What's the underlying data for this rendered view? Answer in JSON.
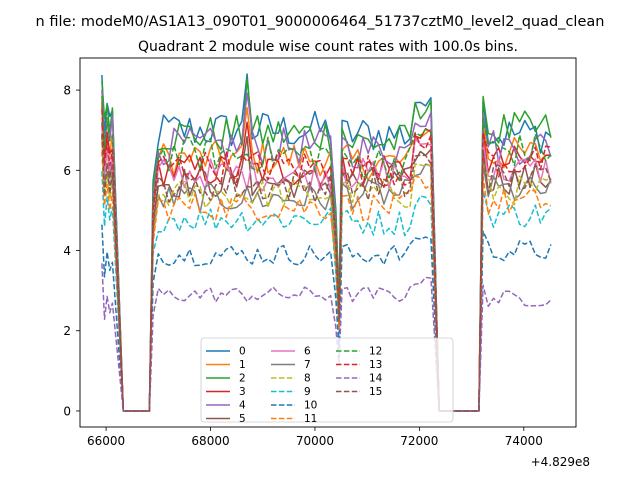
{
  "figure": {
    "suptitle": "n file: modeM0/AS1A13_090T01_9000006464_51737cztM0_level2_quad_clean",
    "title": "Quadrant 2 module wise count rates with 100.0s bins.",
    "offset_label": "+4.829e8"
  },
  "chart_data": {
    "type": "line",
    "title": "Quadrant 2 module wise count rates with 100.0s bins.",
    "xlabel": "",
    "ylabel": "",
    "x_offset": 482900000,
    "xlim": [
      65500,
      75000
    ],
    "ylim": [
      -0.4,
      8.8
    ],
    "xticks": [
      66000,
      68000,
      70000,
      72000,
      74000
    ],
    "yticks": [
      0,
      2,
      4,
      6,
      8
    ],
    "grid": false,
    "legend_position": "lower-center",
    "legend_columns": 4,
    "segments": [
      {
        "start": 65920,
        "end": 66120
      },
      {
        "start": 66900,
        "end": 70420
      },
      {
        "start": 70520,
        "end": 72240
      },
      {
        "start": 73220,
        "end": 74560
      }
    ],
    "gaps": [
      {
        "start": 66330,
        "end": 66830,
        "value": 0
      },
      {
        "start": 72380,
        "end": 73140,
        "value": 0
      }
    ],
    "series": [
      {
        "name": "0",
        "color": "#1f77b4",
        "dash": "solid",
        "levels": [
          8.3,
          7.0,
          6.9,
          6.9
        ]
      },
      {
        "name": "1",
        "color": "#ff7f0e",
        "dash": "solid",
        "levels": [
          7.6,
          6.3,
          6.2,
          6.4
        ]
      },
      {
        "name": "2",
        "color": "#2ca02c",
        "dash": "solid",
        "levels": [
          8.4,
          6.9,
          6.7,
          7.0
        ]
      },
      {
        "name": "3",
        "color": "#d62728",
        "dash": "solid",
        "levels": [
          7.6,
          6.0,
          6.1,
          6.2
        ]
      },
      {
        "name": "4",
        "color": "#9467bd",
        "dash": "solid",
        "levels": [
          8.1,
          6.6,
          6.5,
          6.6
        ]
      },
      {
        "name": "5",
        "color": "#8c564b",
        "dash": "solid",
        "levels": [
          7.2,
          5.7,
          5.7,
          5.8
        ]
      },
      {
        "name": "6",
        "color": "#e377c2",
        "dash": "solid",
        "levels": [
          7.2,
          5.9,
          5.9,
          6.0
        ]
      },
      {
        "name": "7",
        "color": "#7f7f7f",
        "dash": "solid",
        "levels": [
          6.8,
          5.3,
          5.4,
          5.5
        ]
      },
      {
        "name": "8",
        "color": "#bcbd22",
        "dash": "dashed",
        "levels": [
          6.6,
          5.4,
          5.4,
          5.5
        ]
      },
      {
        "name": "9",
        "color": "#17becf",
        "dash": "dashed",
        "levels": [
          5.9,
          4.8,
          4.7,
          4.9
        ]
      },
      {
        "name": "10",
        "color": "#1f77b4",
        "dash": "dashed",
        "levels": [
          4.6,
          3.9,
          3.9,
          4.0
        ]
      },
      {
        "name": "11",
        "color": "#ff7f0e",
        "dash": "dashed",
        "levels": [
          6.3,
          5.1,
          5.1,
          5.2
        ]
      },
      {
        "name": "12",
        "color": "#2ca02c",
        "dash": "dashed",
        "levels": [
          7.8,
          6.4,
          6.2,
          6.5
        ]
      },
      {
        "name": "13",
        "color": "#d62728",
        "dash": "dashed",
        "levels": [
          7.4,
          6.1,
          6.0,
          6.2
        ]
      },
      {
        "name": "14",
        "color": "#9467bd",
        "dash": "dashed",
        "levels": [
          3.6,
          2.9,
          2.9,
          2.8
        ]
      },
      {
        "name": "15",
        "color": "#8c564b",
        "dash": "dashed",
        "levels": [
          6.8,
          5.6,
          5.6,
          5.8
        ]
      }
    ]
  }
}
